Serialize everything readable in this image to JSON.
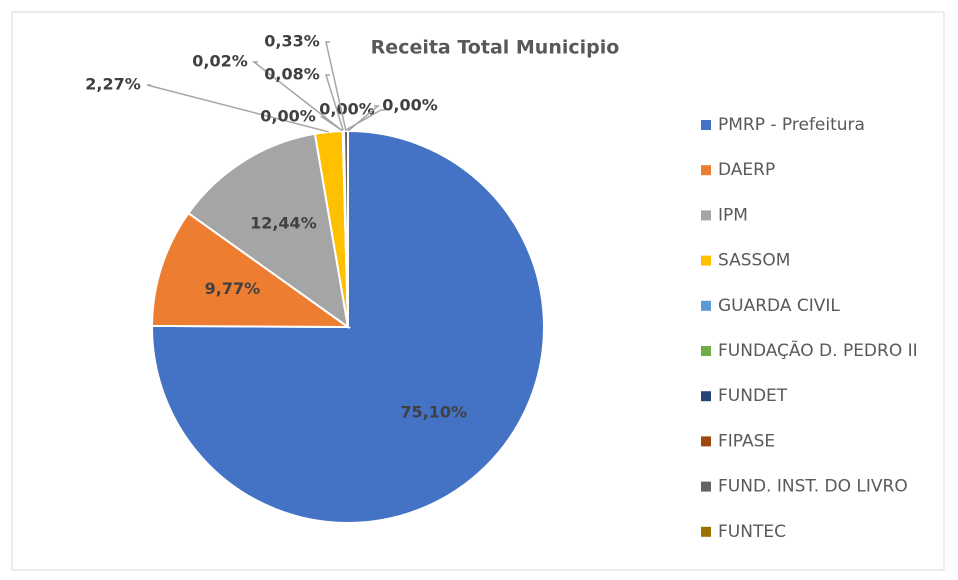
{
  "chart_data": {
    "type": "pie",
    "title": "Receita Total Municipio",
    "categories": [
      "PMRP - Prefeitura",
      "DAERP",
      "IPM",
      "SASSOM",
      "GUARDA CIVIL",
      "FUNDAÇÃO D. PEDRO II",
      "FUNDET",
      "FIPASE",
      "FUND. INST. DO LIVRO",
      "FUNTEC"
    ],
    "values": [
      75.1,
      9.77,
      12.44,
      2.27,
      0.02,
      0.0,
      0.08,
      0.0,
      0.33,
      0.0
    ],
    "value_labels": [
      "75,10%",
      "9,77%",
      "12,44%",
      "2,27%",
      "0,02%",
      "0,00%",
      "0,08%",
      "0,00%",
      "0,33%",
      "0,00%"
    ],
    "colors": [
      "#4472c4",
      "#ed7d31",
      "#a5a5a5",
      "#ffc000",
      "#5b9bd5",
      "#70ad47",
      "#264478",
      "#9e480e",
      "#636363",
      "#997300"
    ],
    "legend": "right"
  }
}
